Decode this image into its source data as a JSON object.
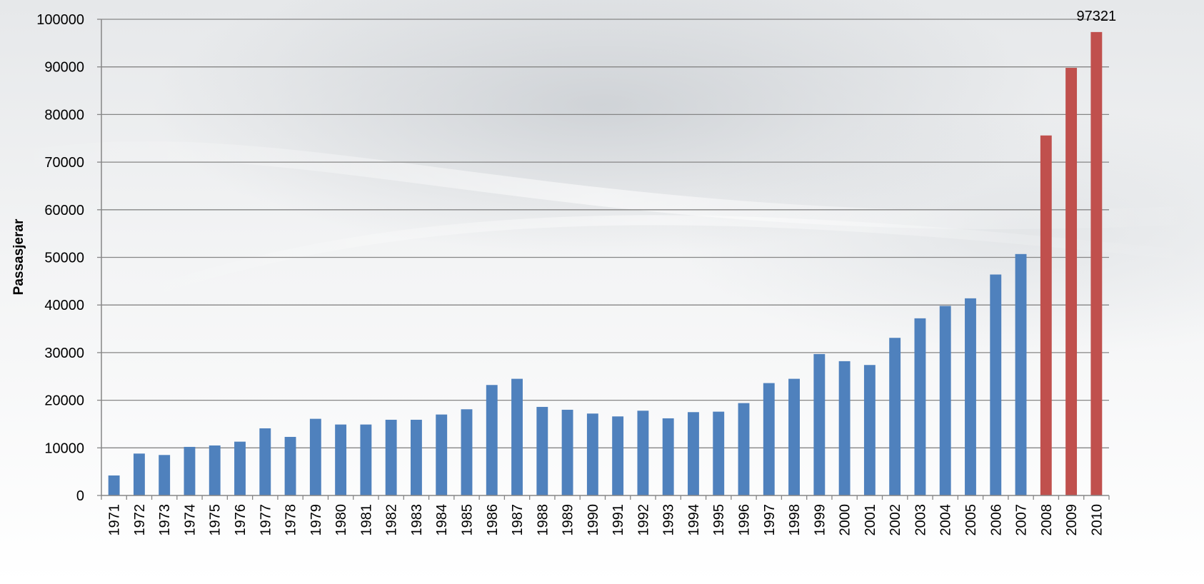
{
  "chart_data": {
    "type": "bar",
    "title": "",
    "xlabel": "",
    "ylabel": "Passasjerar",
    "ylim": [
      0,
      100000
    ],
    "yticks": [
      0,
      10000,
      20000,
      30000,
      40000,
      50000,
      60000,
      70000,
      80000,
      90000,
      100000
    ],
    "grid": true,
    "legend": "none",
    "categories": [
      "1971",
      "1972",
      "1973",
      "1974",
      "1975",
      "1976",
      "1977",
      "1978",
      "1979",
      "1980",
      "1981",
      "1982",
      "1983",
      "1984",
      "1985",
      "1986",
      "1987",
      "1988",
      "1989",
      "1990",
      "1991",
      "1992",
      "1993",
      "1994",
      "1995",
      "1996",
      "1997",
      "1998",
      "1999",
      "2000",
      "2001",
      "2002",
      "2003",
      "2004",
      "2005",
      "2006",
      "2007",
      "2008",
      "2009",
      "2010"
    ],
    "values": [
      4200,
      8800,
      8500,
      10200,
      10500,
      11300,
      14100,
      12300,
      16100,
      14900,
      14900,
      15900,
      15900,
      17000,
      18100,
      23200,
      24500,
      18600,
      18000,
      17200,
      16600,
      17800,
      16200,
      17500,
      17600,
      19400,
      23600,
      24500,
      29700,
      28200,
      27400,
      33100,
      37200,
      39800,
      41400,
      46400,
      50700,
      75600,
      89800,
      97321
    ],
    "colors": {
      "default": "#4f81bd",
      "highlight": "#c0504d"
    },
    "highlight_from": "2008",
    "data_labels": [
      {
        "category": "2010",
        "text": "97321"
      }
    ]
  }
}
